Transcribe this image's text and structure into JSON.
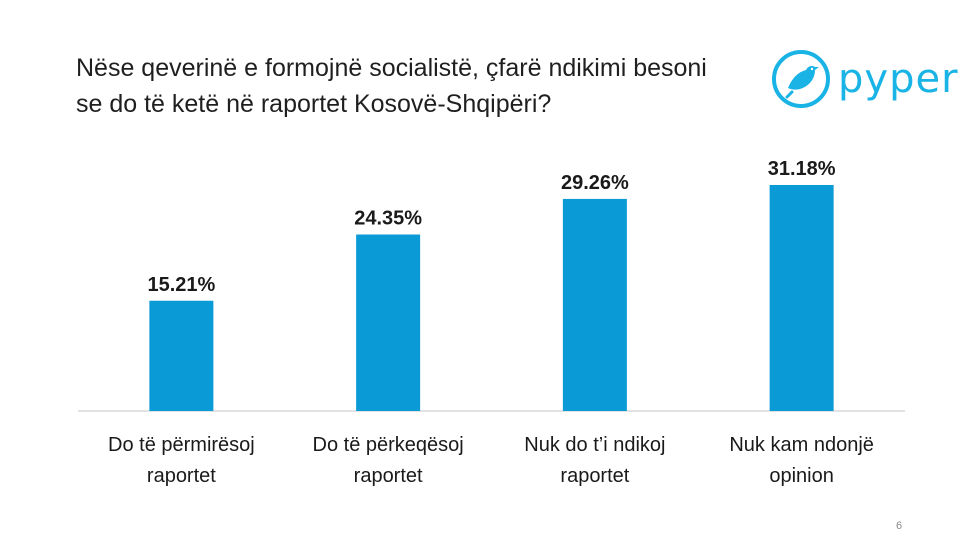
{
  "title_lines": [
    "Nëse qeverinë e formojnë socialistë, çfarë ndikimi besoni",
    "se do të ketë në raportet Kosovë-Shqipëri?"
  ],
  "logo": {
    "text": "pyper",
    "icon": "bird-icon",
    "color": "#1ab3e6"
  },
  "page_number": "6",
  "chart_data": {
    "type": "bar",
    "categories": [
      [
        "Do të përmirësoj",
        "raportet"
      ],
      [
        "Do të përkeqësoj",
        "raportet"
      ],
      [
        "Nuk do t’i ndikoj",
        "raportet"
      ],
      [
        "Nuk kam ndonjë",
        "opinion"
      ]
    ],
    "values": [
      15.21,
      24.35,
      29.26,
      31.18
    ],
    "value_labels": [
      "15.21%",
      "24.35%",
      "29.26%",
      "31.18%"
    ],
    "ylim": [
      0,
      31.18
    ],
    "bar_color": "#0a9bd7",
    "axis_color": "#d9d9d9",
    "grid": false,
    "legend": "none",
    "xlabel": "",
    "ylabel": ""
  }
}
